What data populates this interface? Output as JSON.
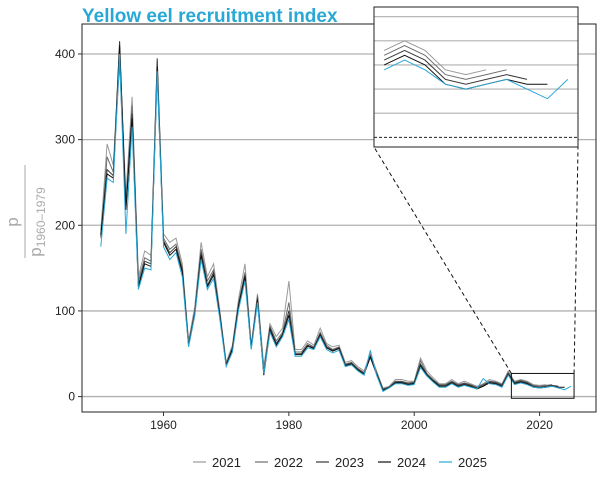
{
  "chart_data": {
    "type": "line",
    "title": "Yellow eel recruitment index",
    "ylabel_numerator": "p",
    "ylabel_denominator": "p",
    "ylabel_denominator_sub": "1960–1979",
    "xlabel": "",
    "xlim": [
      1947,
      2029
    ],
    "ylim": [
      -18,
      435
    ],
    "xticks": [
      1960,
      1980,
      2000,
      2020
    ],
    "yticks": [
      0,
      100,
      200,
      300,
      400
    ],
    "grid": "horizontal",
    "legend_position": "bottom",
    "inset": {
      "xlim": [
        2015.5,
        2025.5
      ],
      "ylim": [
        -2,
        27
      ]
    },
    "series": [
      {
        "name": "2021",
        "color": "#9a9a9a",
        "x": [
          1950,
          1951,
          1952,
          1953,
          1954,
          1955,
          1956,
          1957,
          1958,
          1959,
          1960,
          1961,
          1962,
          1963,
          1964,
          1965,
          1966,
          1967,
          1968,
          1969,
          1970,
          1971,
          1972,
          1973,
          1974,
          1975,
          1976,
          1977,
          1978,
          1979,
          1980,
          1981,
          1982,
          1983,
          1984,
          1985,
          1986,
          1987,
          1988,
          1989,
          1990,
          1991,
          1992,
          1993,
          1994,
          1995,
          1996,
          1997,
          1998,
          1999,
          2000,
          2001,
          2002,
          2003,
          2004,
          2005,
          2006,
          2007,
          2008,
          2009,
          2010,
          2011,
          2012,
          2013,
          2014,
          2015,
          2016,
          2017,
          2018,
          2019,
          2020,
          2021
        ],
        "values": [
          195,
          295,
          270,
          405,
          235,
          350,
          140,
          170,
          165,
          390,
          190,
          180,
          185,
          155,
          65,
          105,
          180,
          140,
          155,
          100,
          40,
          60,
          115,
          155,
          60,
          120,
          35,
          85,
          70,
          80,
          135,
          55,
          55,
          65,
          60,
          80,
          62,
          58,
          60,
          40,
          42,
          35,
          30,
          50,
          30,
          10,
          12,
          20,
          20,
          18,
          18,
          45,
          30,
          22,
          15,
          15,
          20,
          15,
          18,
          15,
          12,
          15,
          20,
          18,
          15,
          30,
          18,
          20,
          18,
          14,
          13,
          14
        ]
      },
      {
        "name": "2022",
        "color": "#6e6e6e",
        "x": [
          1950,
          1951,
          1952,
          1953,
          1954,
          1955,
          1956,
          1957,
          1958,
          1959,
          1960,
          1961,
          1962,
          1963,
          1964,
          1965,
          1966,
          1967,
          1968,
          1969,
          1970,
          1971,
          1972,
          1973,
          1974,
          1975,
          1976,
          1977,
          1978,
          1979,
          1980,
          1981,
          1982,
          1983,
          1984,
          1985,
          1986,
          1987,
          1988,
          1989,
          1990,
          1991,
          1992,
          1993,
          1994,
          1995,
          1996,
          1997,
          1998,
          1999,
          2000,
          2001,
          2002,
          2003,
          2004,
          2005,
          2006,
          2007,
          2008,
          2009,
          2010,
          2011,
          2012,
          2013,
          2014,
          2015,
          2016,
          2017,
          2018,
          2019,
          2020,
          2021,
          2022
        ],
        "values": [
          185,
          280,
          262,
          390,
          225,
          340,
          135,
          162,
          158,
          375,
          185,
          172,
          178,
          150,
          62,
          100,
          172,
          135,
          148,
          97,
          38,
          58,
          110,
          145,
          58,
          118,
          30,
          82,
          65,
          75,
          110,
          52,
          52,
          62,
          58,
          75,
          60,
          55,
          58,
          38,
          40,
          33,
          28,
          48,
          28,
          9,
          11,
          18,
          18,
          16,
          17,
          42,
          27,
          20,
          14,
          14,
          18,
          14,
          16,
          14,
          11,
          14,
          18,
          17,
          14,
          28,
          17,
          19,
          17,
          13,
          12,
          13,
          14
        ]
      },
      {
        "name": "2023",
        "color": "#3a3a3a",
        "x": [
          1950,
          1951,
          1952,
          1953,
          1954,
          1955,
          1956,
          1957,
          1958,
          1959,
          1960,
          1961,
          1962,
          1963,
          1964,
          1965,
          1966,
          1967,
          1968,
          1969,
          1970,
          1971,
          1972,
          1973,
          1974,
          1975,
          1976,
          1977,
          1978,
          1979,
          1980,
          1981,
          1982,
          1983,
          1984,
          1985,
          1986,
          1987,
          1988,
          1989,
          1990,
          1991,
          1992,
          1993,
          1994,
          1995,
          1996,
          1997,
          1998,
          1999,
          2000,
          2001,
          2002,
          2003,
          2004,
          2005,
          2006,
          2007,
          2008,
          2009,
          2010,
          2011,
          2012,
          2013,
          2014,
          2015,
          2016,
          2017,
          2018,
          2019,
          2020,
          2021,
          2022,
          2023
        ],
        "values": [
          190,
          265,
          258,
          415,
          220,
          330,
          130,
          158,
          155,
          395,
          182,
          168,
          175,
          148,
          60,
          98,
          168,
          130,
          145,
          95,
          37,
          56,
          108,
          142,
          57,
          115,
          28,
          80,
          62,
          73,
          100,
          50,
          50,
          60,
          57,
          73,
          58,
          54,
          57,
          37,
          39,
          32,
          27,
          47,
          27,
          8,
          11,
          17,
          17,
          15,
          16,
          38,
          26,
          19,
          13,
          13,
          17,
          13,
          15,
          13,
          10,
          13,
          17,
          16,
          13,
          27,
          16,
          18,
          16,
          12,
          11,
          12,
          13,
          12
        ]
      },
      {
        "name": "2024",
        "color": "#111111",
        "x": [
          1950,
          1951,
          1952,
          1953,
          1954,
          1955,
          1956,
          1957,
          1958,
          1959,
          1960,
          1961,
          1962,
          1963,
          1964,
          1965,
          1966,
          1967,
          1968,
          1969,
          1970,
          1971,
          1972,
          1973,
          1974,
          1975,
          1976,
          1977,
          1978,
          1979,
          1980,
          1981,
          1982,
          1983,
          1984,
          1985,
          1986,
          1987,
          1988,
          1989,
          1990,
          1991,
          1992,
          1993,
          1994,
          1995,
          1996,
          1997,
          1998,
          1999,
          2000,
          2001,
          2002,
          2003,
          2004,
          2005,
          2006,
          2007,
          2008,
          2009,
          2010,
          2011,
          2012,
          2013,
          2014,
          2015,
          2016,
          2017,
          2018,
          2019,
          2020,
          2021,
          2022,
          2023,
          2024
        ],
        "values": [
          188,
          260,
          255,
          410,
          218,
          325,
          128,
          155,
          152,
          385,
          180,
          165,
          172,
          145,
          59,
          96,
          165,
          128,
          142,
          93,
          36,
          55,
          106,
          140,
          56,
          112,
          25,
          78,
          60,
          72,
          95,
          49,
          49,
          59,
          56,
          72,
          57,
          53,
          56,
          36,
          38,
          31,
          26,
          46,
          26,
          7,
          10,
          16,
          16,
          14,
          15,
          36,
          25,
          18,
          12,
          12,
          16,
          12,
          14,
          12,
          9,
          12,
          16,
          15,
          12,
          26,
          15,
          17,
          15,
          11,
          10,
          11,
          12,
          11,
          11
        ]
      },
      {
        "name": "2025",
        "color": "#29a8d6",
        "x": [
          1950,
          1951,
          1952,
          1953,
          1954,
          1955,
          1956,
          1957,
          1958,
          1959,
          1960,
          1961,
          1962,
          1963,
          1964,
          1965,
          1966,
          1967,
          1968,
          1969,
          1970,
          1971,
          1972,
          1973,
          1974,
          1975,
          1976,
          1977,
          1978,
          1979,
          1980,
          1981,
          1982,
          1983,
          1984,
          1985,
          1986,
          1987,
          1988,
          1989,
          1990,
          1991,
          1992,
          1993,
          1994,
          1995,
          1996,
          1997,
          1998,
          1999,
          2000,
          2001,
          2002,
          2003,
          2004,
          2005,
          2006,
          2007,
          2008,
          2009,
          2010,
          2011,
          2012,
          2013,
          2014,
          2015,
          2016,
          2017,
          2018,
          2019,
          2020,
          2021,
          2022,
          2023,
          2024,
          2025
        ],
        "values": [
          175,
          255,
          250,
          400,
          190,
          315,
          125,
          150,
          148,
          380,
          175,
          160,
          168,
          140,
          58,
          95,
          160,
          125,
          138,
          90,
          35,
          52,
          102,
          135,
          55,
          110,
          27,
          75,
          58,
          70,
          90,
          47,
          47,
          57,
          55,
          70,
          55,
          51,
          54,
          35,
          37,
          30,
          25,
          54,
          25,
          6,
          10,
          15,
          15,
          13,
          14,
          34,
          24,
          17,
          11,
          11,
          15,
          11,
          13,
          11,
          9,
          21,
          15,
          14,
          11,
          25,
          14,
          16,
          14,
          11,
          10,
          11,
          12,
          10,
          8,
          12
        ]
      }
    ]
  }
}
